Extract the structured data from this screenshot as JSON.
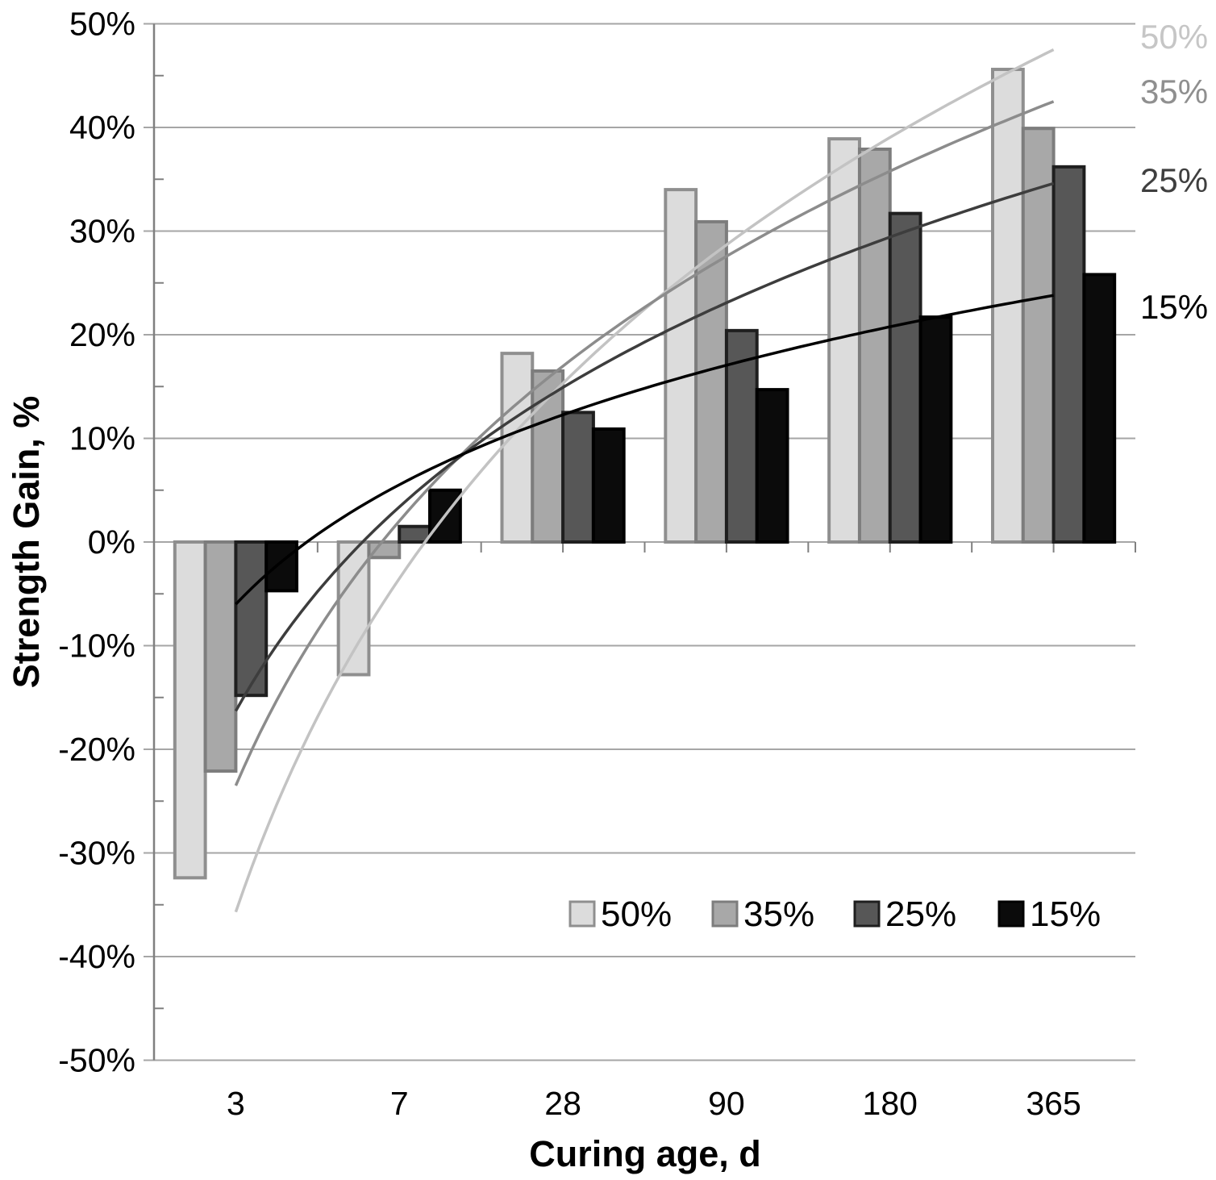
{
  "chart_data": {
    "type": "bar",
    "title": "",
    "xlabel": "Curing age, d",
    "ylabel": "Strength Gain, %",
    "categories": [
      "3",
      "7",
      "28",
      "90",
      "180",
      "365"
    ],
    "series": [
      {
        "name": "50%",
        "fill": "#dcdcdc",
        "border": "#8f8f8f",
        "values": [
          -32.4,
          -12.8,
          18.2,
          34.0,
          38.9,
          45.6
        ]
      },
      {
        "name": "35%",
        "fill": "#a8a8a8",
        "border": "#7d7d7d",
        "values": [
          -22.1,
          -1.5,
          16.5,
          30.9,
          37.9,
          39.9
        ]
      },
      {
        "name": "25%",
        "fill": "#575757",
        "border": "#1f1f1f",
        "values": [
          -14.8,
          1.5,
          12.5,
          20.4,
          31.7,
          36.2
        ]
      },
      {
        "name": "15%",
        "fill": "#0b0b0b",
        "border": "#000000",
        "values": [
          -4.7,
          5.0,
          10.9,
          14.7,
          21.7,
          25.8
        ]
      }
    ],
    "trendlines": [
      {
        "name": "50%",
        "type": "logarithmic",
        "color": "#c3c3c3",
        "start_value": -35.7,
        "end_value": 47.5,
        "label": "50%",
        "label_color": "#c6c6c6"
      },
      {
        "name": "35%",
        "type": "logarithmic",
        "color": "#8c8c8c",
        "start_value": -23.5,
        "end_value": 42.5,
        "label": "35%",
        "label_color": "#8f8f8f"
      },
      {
        "name": "25%",
        "type": "logarithmic",
        "color": "#3d3d3d",
        "start_value": -16.3,
        "end_value": 34.6,
        "label": "25%",
        "label_color": "#3f3f3f"
      },
      {
        "name": "15%",
        "type": "logarithmic",
        "color": "#000000",
        "start_value": -6.0,
        "end_value": 23.8,
        "label": "15%",
        "label_color": "#000000"
      }
    ],
    "ylim": [
      -50,
      50
    ],
    "y_tick_step": 10,
    "y_minor_tick_step": 5,
    "y_ticks": [
      "50%",
      "40%",
      "30%",
      "20%",
      "10%",
      "0%",
      "-10%",
      "-20%",
      "-30%",
      "-40%",
      "-50%"
    ],
    "grid": "horizontal major gridlines on",
    "legend_position": "inside plot, lower right",
    "legend_items": [
      {
        "label": "50%"
      },
      {
        "label": "35%"
      },
      {
        "label": "25%"
      },
      {
        "label": "15%"
      }
    ],
    "colors": {
      "gridline": "#a6a6a6",
      "axis": "#808080",
      "text": "#000000"
    }
  }
}
